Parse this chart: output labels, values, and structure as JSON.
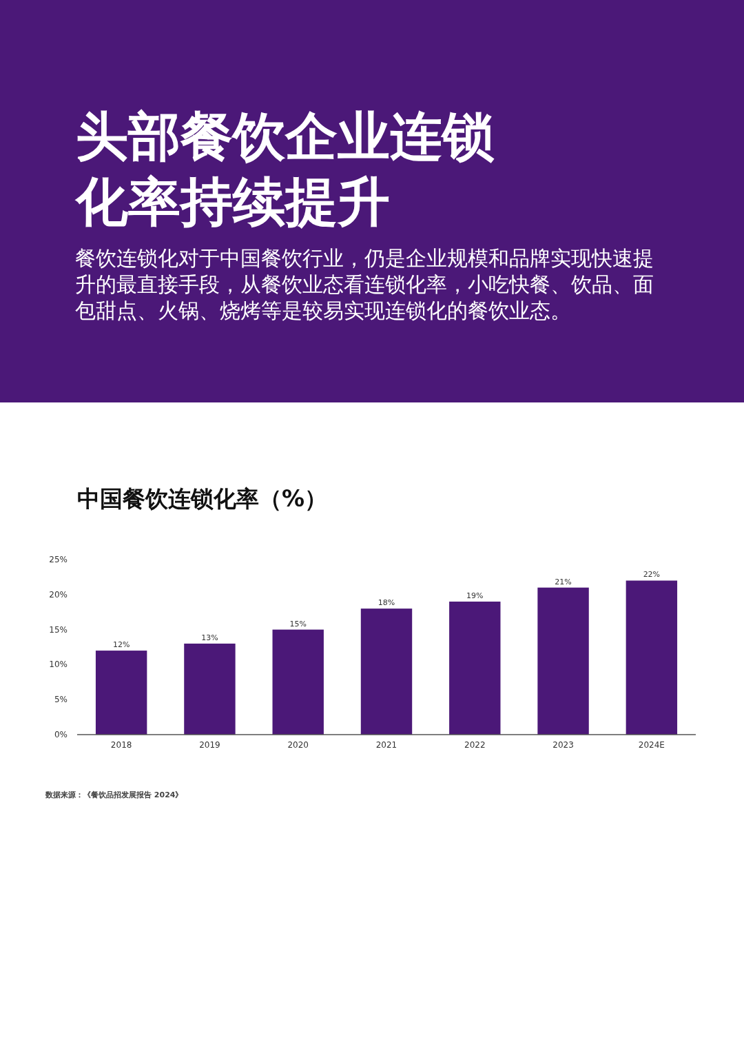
{
  "chart_data": {
    "type": "bar",
    "title": "头部餐饮企业连锁化率持续提升",
    "subtitle": "餐饮连锁化对于中国餐饮行业，仍是企业规模和品牌实现快速提升的最直接手段，从餐饮业态看连锁化率，小吃快餐、饮品、面包甜点、火锅、烧烤等是较易实现连锁化的餐饮业态。",
    "annotations": [
      "中国餐饮连锁化率（%）",
      "数据来源：《餐饮品招发展报告 2024》"
    ],
    "categories": [
      "2018",
      "2019",
      "2020",
      "2021",
      "2022",
      "2023",
      "2024E"
    ],
    "values": [
      12,
      13,
      15,
      18,
      19,
      21,
      22
    ],
    "value_labels": [
      "12%",
      "13%",
      "15%",
      "18%",
      "19%",
      "21%",
      "22%"
    ],
    "color": "#4b1878",
    "ylim": [
      0,
      25
    ],
    "yticks": [
      {
        "value": 0,
        "label": "0%"
      },
      {
        "value": 5,
        "label": "5%"
      },
      {
        "value": 10,
        "label": "10%"
      },
      {
        "value": 15,
        "label": "15%"
      },
      {
        "value": 20,
        "label": "20%"
      },
      {
        "value": 25,
        "label": "25%"
      }
    ],
    "grid": false
  }
}
